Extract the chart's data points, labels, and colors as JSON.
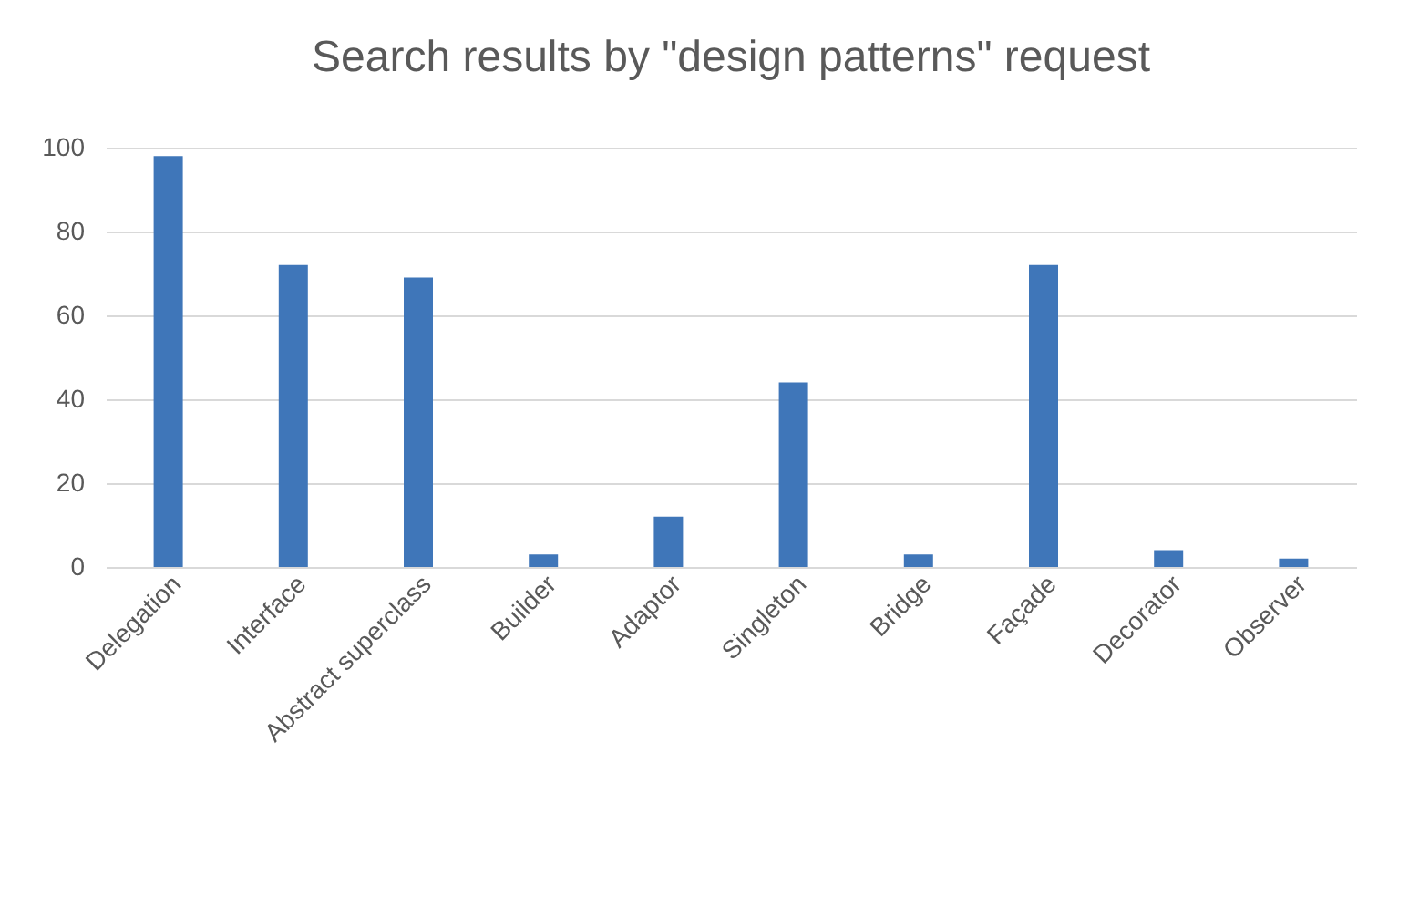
{
  "chart_data": {
    "type": "bar",
    "title": "Search results by \"design patterns\" request",
    "categories": [
      "Delegation",
      "Interface",
      "Abstract superclass",
      "Builder",
      "Adaptor",
      "Singleton",
      "Bridge",
      "Façade",
      "Decorator",
      "Observer"
    ],
    "values": [
      98,
      72,
      69,
      3,
      12,
      44,
      3,
      72,
      4,
      2
    ],
    "color": "#3f76b9",
    "ylim": [
      0,
      100
    ],
    "yticks": [
      0,
      20,
      40,
      60,
      80,
      100
    ],
    "grid": "y"
  }
}
